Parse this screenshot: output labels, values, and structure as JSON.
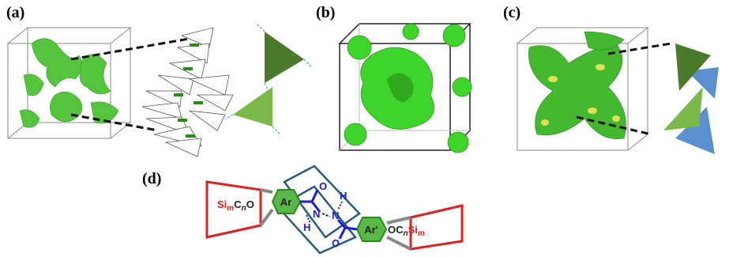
{
  "panels": [
    {
      "label": "(a)"
    },
    {
      "label": "(b)"
    },
    {
      "label": "(c)"
    },
    {
      "label": "(d)"
    }
  ],
  "molecule": {
    "left_tail": [
      "Si",
      "m",
      "C",
      "n",
      "O"
    ],
    "left_ring": "Ar",
    "right_ring": "Ar'",
    "right_tail": [
      "OC",
      "n",
      "Si",
      "m"
    ],
    "atoms": [
      "O",
      "N",
      "H",
      "N",
      "H",
      "O"
    ]
  }
}
